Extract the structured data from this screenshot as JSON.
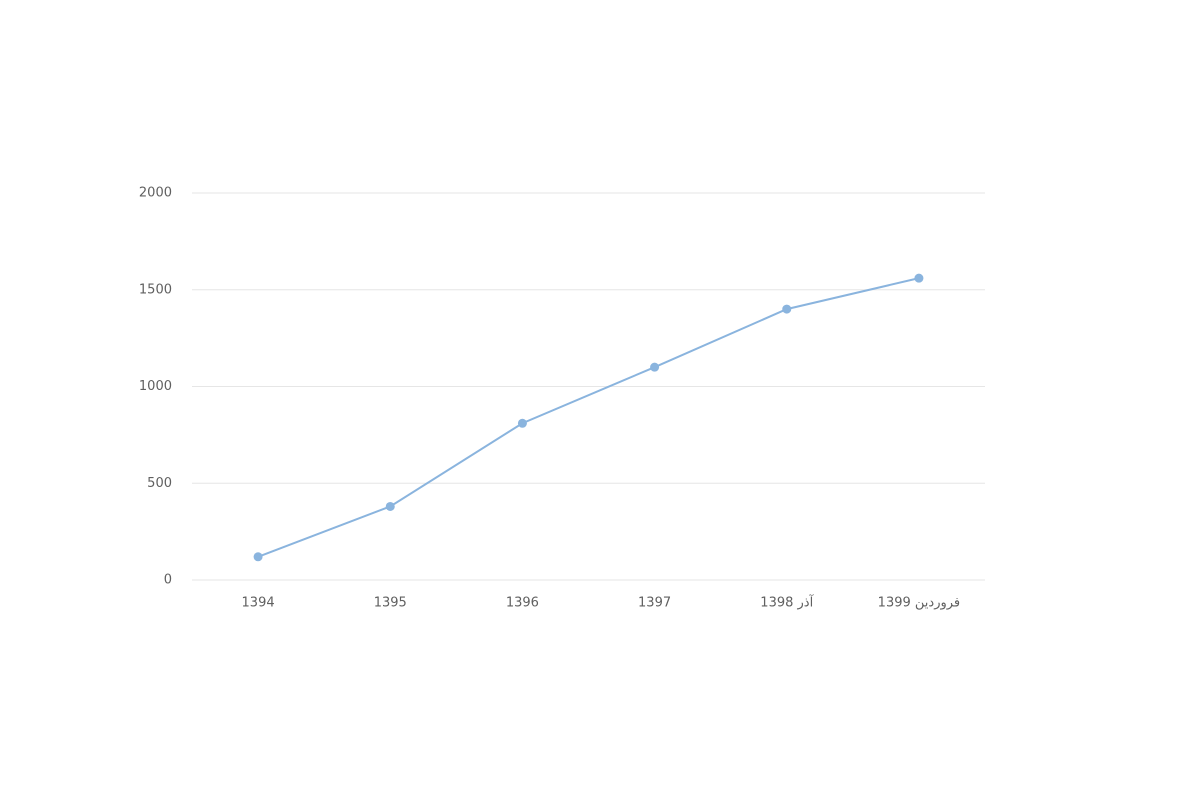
{
  "chart_data": {
    "type": "line",
    "categories": [
      "1394",
      "1395",
      "1396",
      "1397",
      "آذر 1398",
      "فروردین 1399"
    ],
    "series": [
      {
        "color": "#8ab4de",
        "values": [
          120,
          380,
          810,
          1100,
          1400,
          1560
        ]
      }
    ],
    "ylim": [
      0,
      2000
    ],
    "yticks": [
      0,
      500,
      1000,
      1500,
      2000
    ],
    "grid": true
  }
}
